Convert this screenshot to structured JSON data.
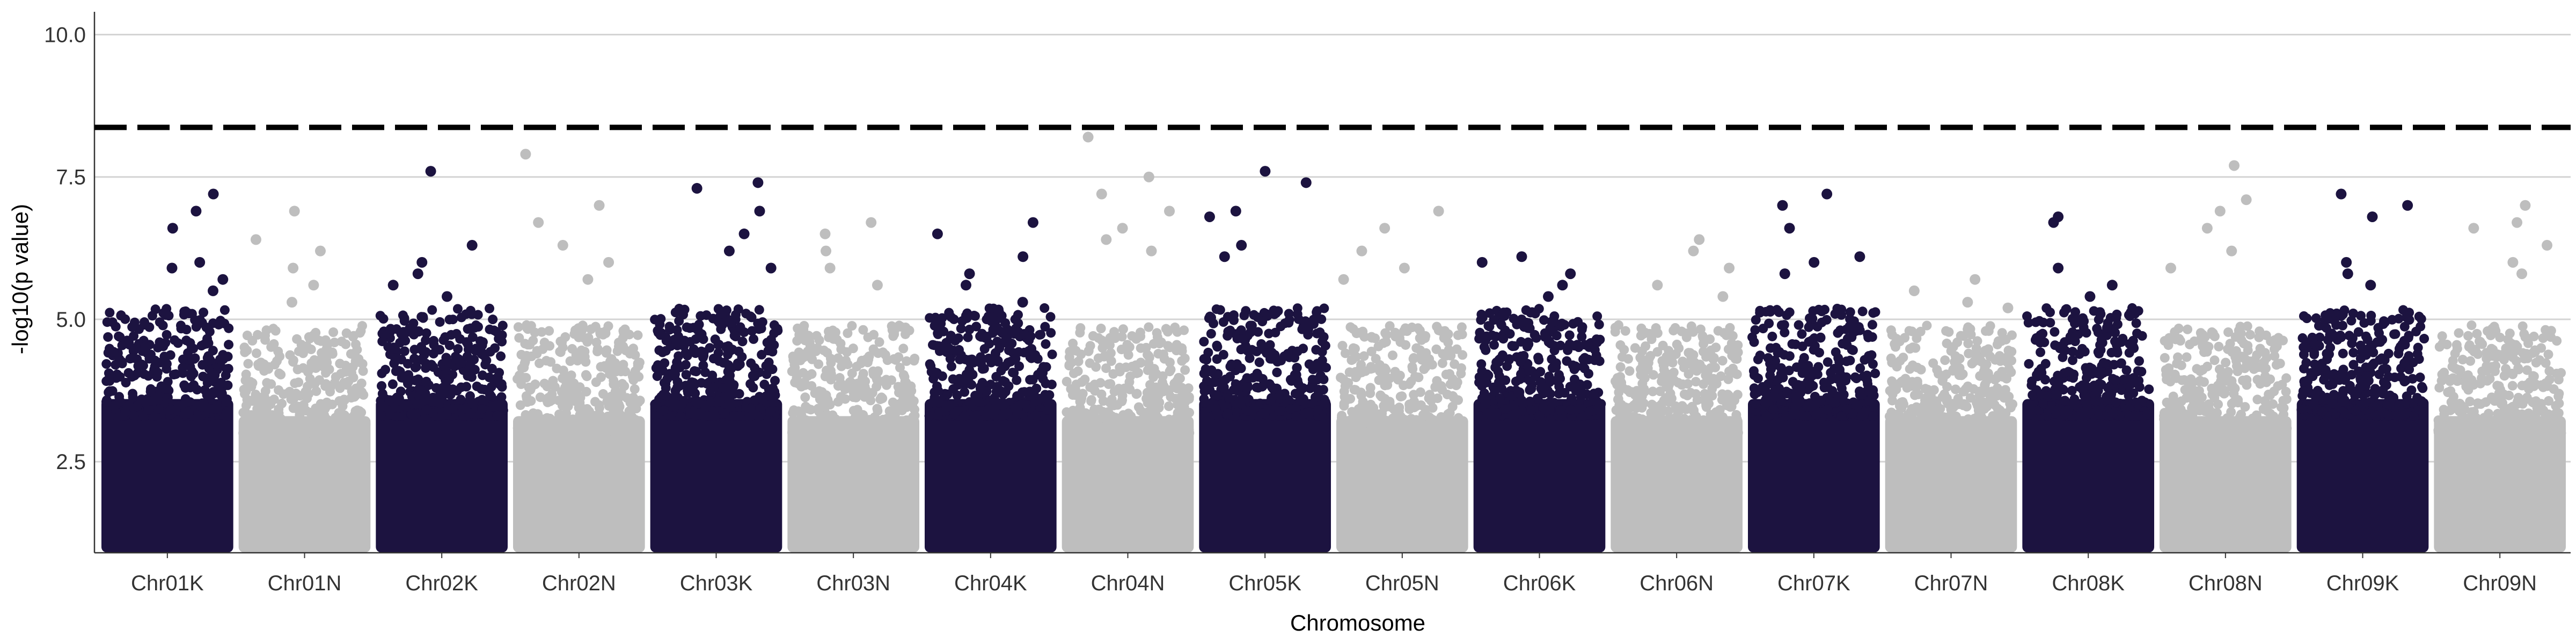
{
  "chart_data": {
    "type": "scatter",
    "subtype": "manhattan",
    "title": "",
    "xlabel": "Chromosome",
    "ylabel": "-log10(p value)",
    "ylim": [
      0.9,
      10.4
    ],
    "yticks": [
      2.5,
      5.0,
      7.5,
      10.0
    ],
    "ytick_labels": [
      "2.5",
      "5.0",
      "7.5",
      "10.0"
    ],
    "grid": "horizontal",
    "legend": "none",
    "threshold": {
      "value": 8.37,
      "style": "dashed",
      "color": "#000000"
    },
    "colors": {
      "K": "#1c1340",
      "N": "#bebebe"
    },
    "points_per_chromosome_shown": 330,
    "chromosomes": [
      {
        "name": "Chr01K",
        "group": "K",
        "top_hits": [
          7.2,
          6.9,
          6.6,
          6.0,
          5.9,
          5.7,
          5.5
        ]
      },
      {
        "name": "Chr01N",
        "group": "N",
        "top_hits": [
          6.9,
          6.4,
          6.2,
          5.9,
          5.6,
          5.3
        ]
      },
      {
        "name": "Chr02K",
        "group": "K",
        "top_hits": [
          7.6,
          6.3,
          6.0,
          5.8,
          5.6,
          5.4
        ]
      },
      {
        "name": "Chr02N",
        "group": "N",
        "top_hits": [
          7.9,
          7.0,
          6.7,
          6.3,
          6.0,
          5.7
        ]
      },
      {
        "name": "Chr03K",
        "group": "K",
        "top_hits": [
          7.4,
          7.3,
          6.9,
          6.5,
          6.2,
          5.9
        ]
      },
      {
        "name": "Chr03N",
        "group": "N",
        "top_hits": [
          6.7,
          6.5,
          6.2,
          5.9,
          5.6
        ]
      },
      {
        "name": "Chr04K",
        "group": "K",
        "top_hits": [
          6.7,
          6.5,
          6.1,
          5.8,
          5.6,
          5.3
        ]
      },
      {
        "name": "Chr04N",
        "group": "N",
        "top_hits": [
          8.2,
          7.5,
          7.2,
          6.9,
          6.6,
          6.4,
          6.2
        ]
      },
      {
        "name": "Chr05K",
        "group": "K",
        "top_hits": [
          7.6,
          7.4,
          6.9,
          6.8,
          6.3,
          6.1
        ]
      },
      {
        "name": "Chr05N",
        "group": "N",
        "top_hits": [
          6.9,
          6.6,
          6.2,
          5.9,
          5.7
        ]
      },
      {
        "name": "Chr06K",
        "group": "K",
        "top_hits": [
          6.1,
          6.0,
          5.8,
          5.6,
          5.4
        ]
      },
      {
        "name": "Chr06N",
        "group": "N",
        "top_hits": [
          6.4,
          6.2,
          5.9,
          5.6,
          5.4
        ]
      },
      {
        "name": "Chr07K",
        "group": "K",
        "top_hits": [
          7.2,
          7.0,
          6.6,
          6.1,
          6.0,
          5.8
        ]
      },
      {
        "name": "Chr07N",
        "group": "N",
        "top_hits": [
          5.7,
          5.5,
          5.3,
          5.2
        ]
      },
      {
        "name": "Chr08K",
        "group": "K",
        "top_hits": [
          6.8,
          6.7,
          5.9,
          5.6,
          5.4
        ]
      },
      {
        "name": "Chr08N",
        "group": "N",
        "top_hits": [
          7.7,
          7.1,
          6.9,
          6.6,
          6.2,
          5.9
        ]
      },
      {
        "name": "Chr09K",
        "group": "K",
        "top_hits": [
          7.2,
          7.0,
          6.8,
          6.0,
          5.8,
          5.6
        ]
      },
      {
        "name": "Chr09N",
        "group": "N",
        "top_hits": [
          7.0,
          6.7,
          6.6,
          6.3,
          6.0,
          5.8
        ]
      }
    ]
  }
}
